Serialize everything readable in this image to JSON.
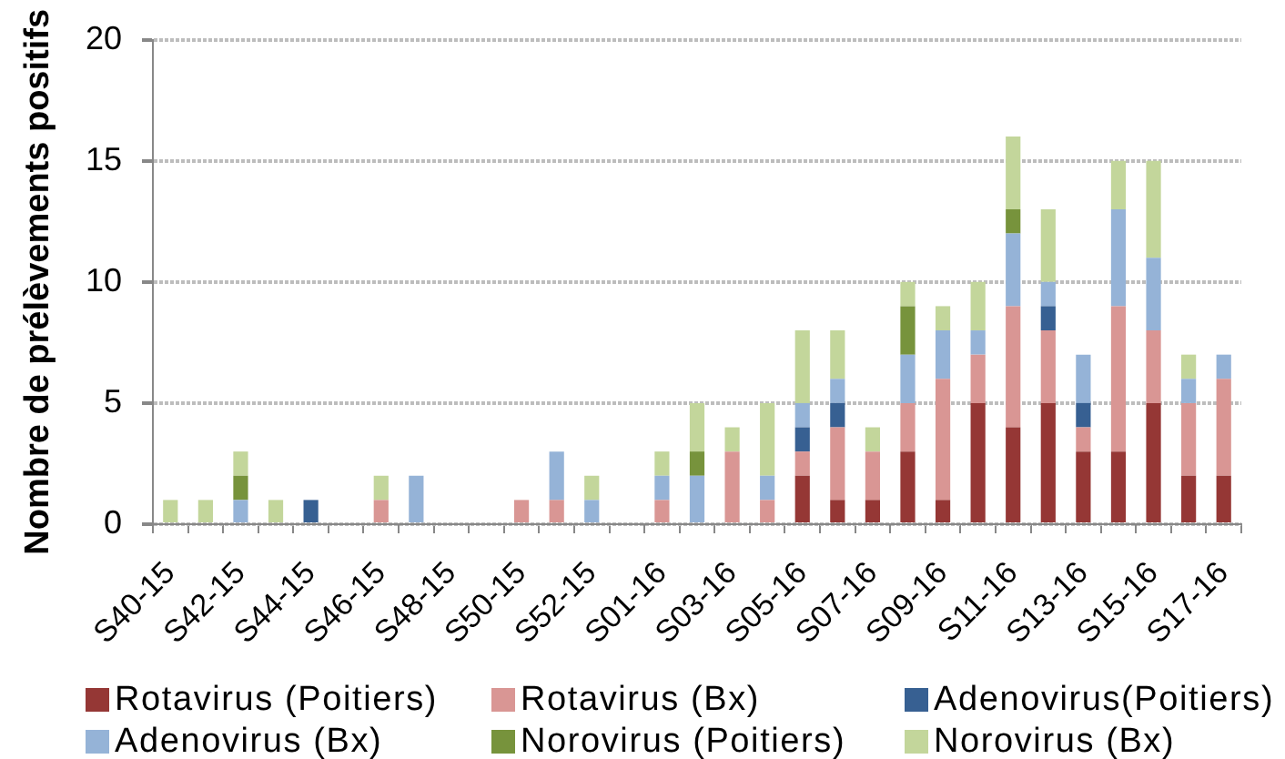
{
  "chart_data": {
    "type": "bar",
    "stacked": true,
    "ylabel": "Nombre de prélèvements positifs",
    "categories": [
      "S40-15",
      null,
      "S42-15",
      null,
      "S44-15",
      null,
      "S46-15",
      null,
      "S48-15",
      null,
      "S50-15",
      null,
      "S52-15",
      null,
      "S01-16",
      null,
      "S03-16",
      null,
      "S05-16",
      null,
      "S07-16",
      null,
      "S09-16",
      null,
      "S11-16",
      null,
      "S13-16",
      null,
      "S15-16",
      null,
      "S17-16"
    ],
    "series": [
      {
        "name": "Rotavirus (Poitiers)",
        "color": "#953735",
        "values": [
          0,
          0,
          0,
          0,
          0,
          0,
          0,
          0,
          0,
          0,
          0,
          0,
          0,
          0,
          0,
          0,
          0,
          0,
          2,
          1,
          1,
          3,
          1,
          5,
          4,
          5,
          3,
          3,
          5,
          2,
          2
        ]
      },
      {
        "name": "Rotavirus (Bx)",
        "color": "#d99694",
        "values": [
          0,
          0,
          0,
          0,
          0,
          0,
          1,
          0,
          0,
          0,
          1,
          1,
          0,
          0,
          1,
          0,
          3,
          1,
          1,
          3,
          2,
          2,
          5,
          2,
          5,
          3,
          1,
          6,
          3,
          3,
          4
        ]
      },
      {
        "name": "Adenovirus(Poitiers)",
        "color": "#376092",
        "values": [
          0,
          0,
          0,
          0,
          1,
          0,
          0,
          0,
          0,
          0,
          0,
          0,
          0,
          0,
          0,
          0,
          0,
          0,
          1,
          1,
          0,
          0,
          0,
          0,
          0,
          1,
          1,
          0,
          0,
          0,
          0
        ]
      },
      {
        "name": "Adenovirus (Bx)",
        "color": "#95b3d7",
        "values": [
          0,
          0,
          1,
          0,
          0,
          0,
          0,
          2,
          0,
          0,
          0,
          2,
          1,
          0,
          1,
          2,
          0,
          1,
          1,
          1,
          0,
          2,
          2,
          1,
          3,
          1,
          2,
          4,
          3,
          1,
          1
        ]
      },
      {
        "name": "Norovirus (Poitiers)",
        "color": "#77933c",
        "values": [
          0,
          0,
          1,
          0,
          0,
          0,
          0,
          0,
          0,
          0,
          0,
          0,
          0,
          0,
          0,
          1,
          0,
          0,
          0,
          0,
          0,
          2,
          0,
          0,
          1,
          0,
          0,
          0,
          0,
          0,
          0
        ]
      },
      {
        "name": "Norovirus (Bx)",
        "color": "#c3d69b",
        "values": [
          1,
          1,
          1,
          1,
          0,
          0,
          1,
          0,
          0,
          0,
          0,
          0,
          1,
          0,
          1,
          2,
          1,
          3,
          3,
          2,
          1,
          1,
          1,
          2,
          3,
          3,
          0,
          2,
          4,
          1,
          0
        ]
      }
    ],
    "ylim": [
      0,
      20
    ],
    "yticks": [
      0,
      5,
      10,
      15,
      20
    ],
    "grid": "y",
    "legend": "bottom"
  }
}
